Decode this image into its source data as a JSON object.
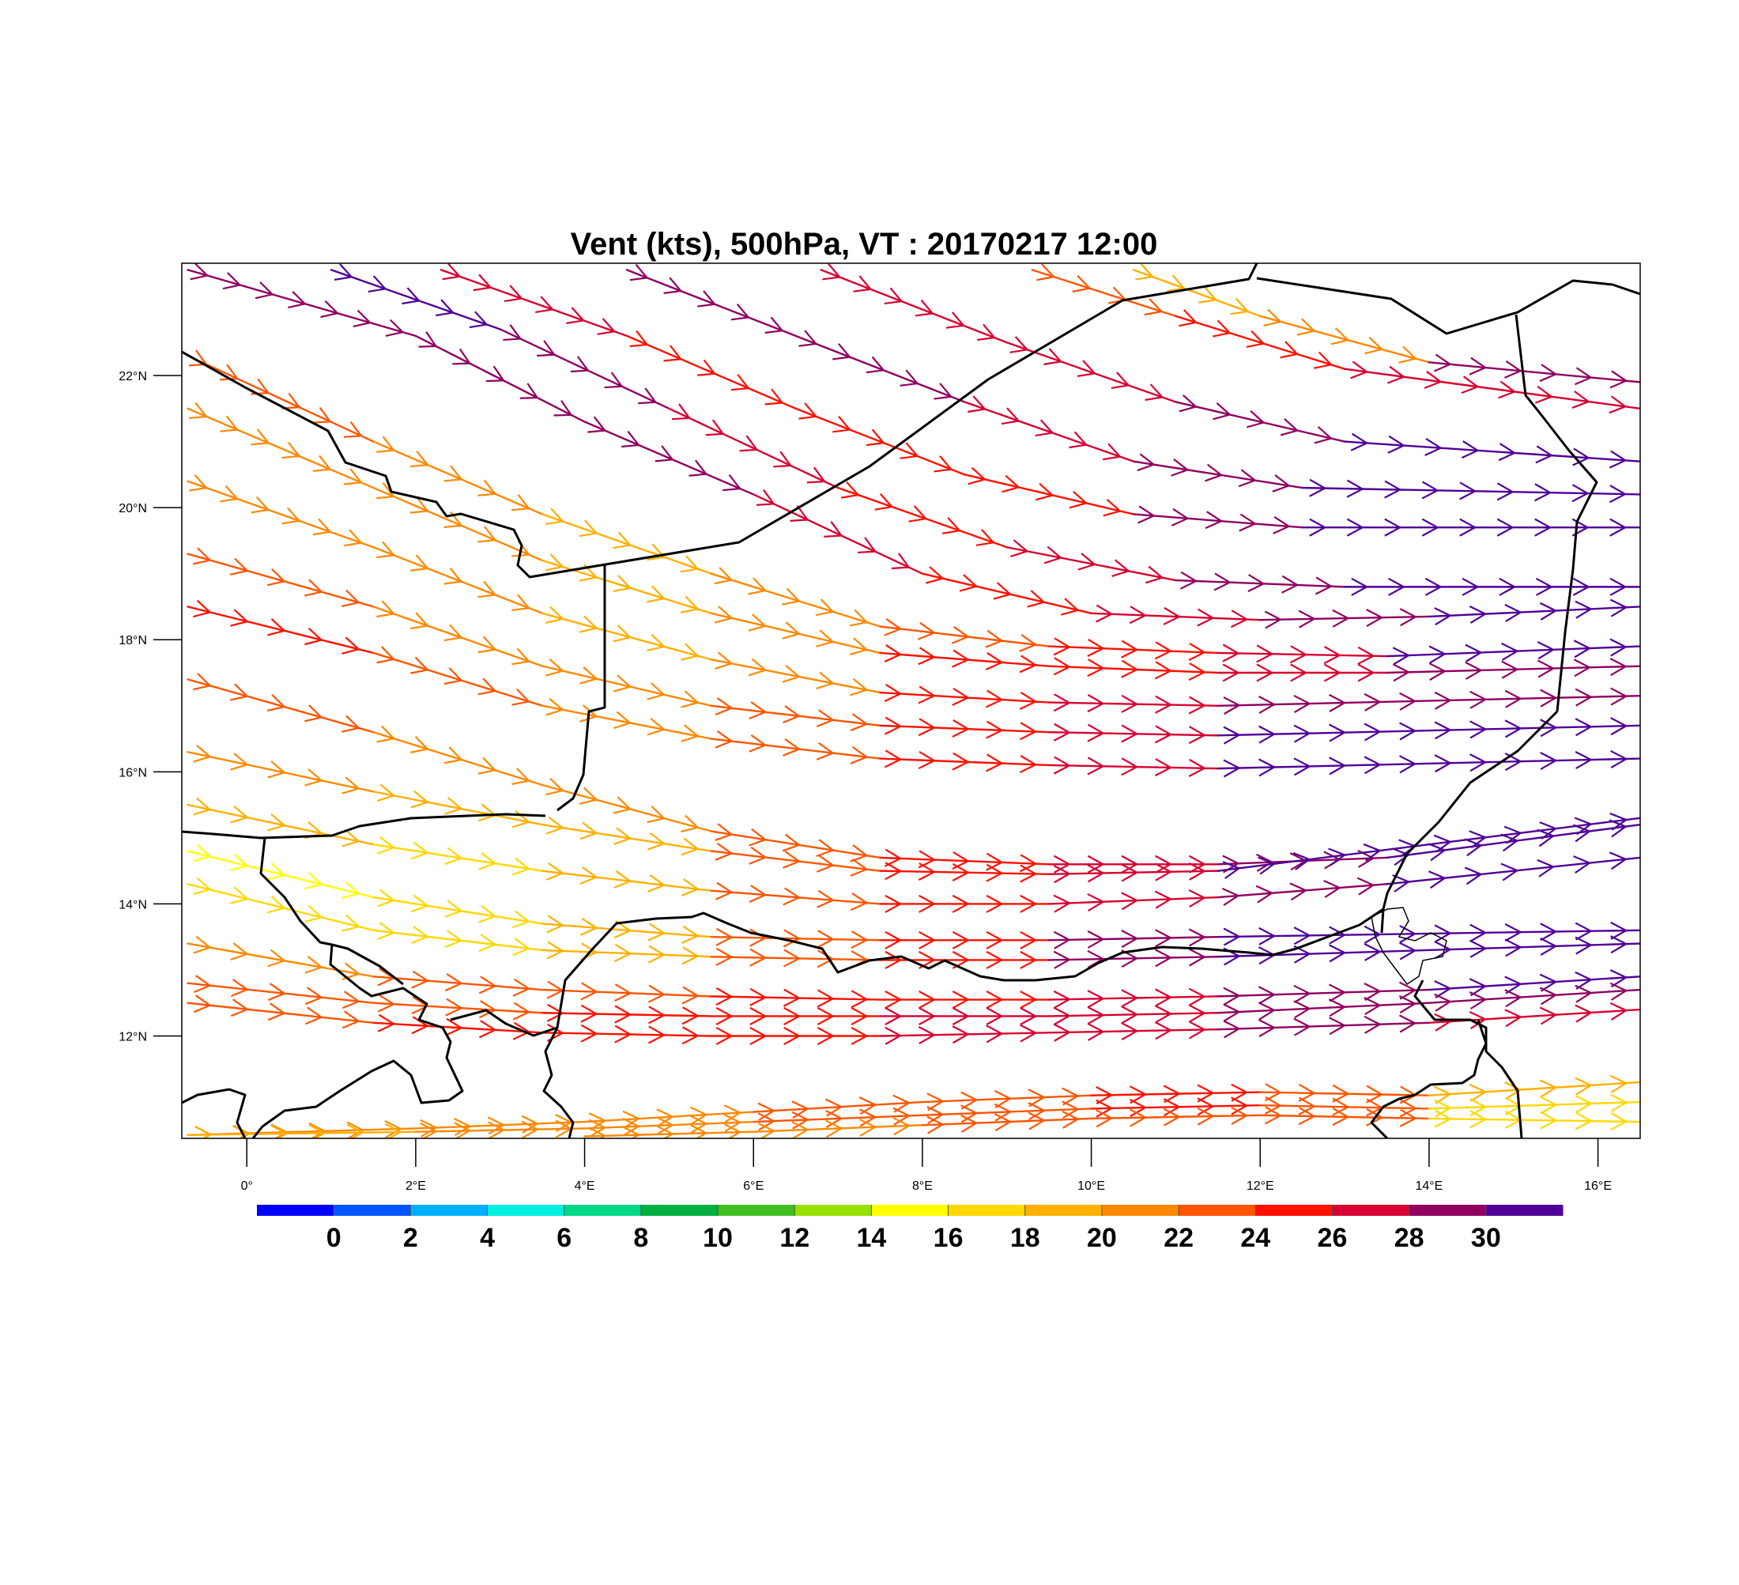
{
  "title": "Vent (kts), 500hPa, VT : 20170217  12:00",
  "map": {
    "lon_range": [
      -0.77,
      16.5
    ],
    "lat_range": [
      10.45,
      23.7
    ],
    "lat_ticks": [
      {
        "value": 22,
        "label": "22°N"
      },
      {
        "value": 20,
        "label": "20°N"
      },
      {
        "value": 18,
        "label": "18°N"
      },
      {
        "value": 16,
        "label": "16°N"
      },
      {
        "value": 14,
        "label": "14°N"
      },
      {
        "value": 12,
        "label": "12°N"
      }
    ],
    "lon_ticks": [
      {
        "value": 0,
        "label": "0°"
      },
      {
        "value": 2,
        "label": "2°E"
      },
      {
        "value": 4,
        "label": "4°E"
      },
      {
        "value": 6,
        "label": "6°E"
      },
      {
        "value": 8,
        "label": "8°E"
      },
      {
        "value": 10,
        "label": "10°E"
      },
      {
        "value": 12,
        "label": "12°E"
      },
      {
        "value": 14,
        "label": "14°E"
      },
      {
        "value": 16,
        "label": "16°E"
      }
    ]
  },
  "colorbar": {
    "colors": [
      "#0000ff",
      "#0055ff",
      "#00b0ff",
      "#00f0e0",
      "#00d888",
      "#00b040",
      "#40c020",
      "#98e000",
      "#ffff00",
      "#ffd800",
      "#ffb000",
      "#ff8800",
      "#ff5500",
      "#ff1000",
      "#d80030",
      "#900060",
      "#500098"
    ],
    "labels": [
      "0",
      "2",
      "4",
      "6",
      "8",
      "10",
      "12",
      "14",
      "16",
      "18",
      "20",
      "22",
      "24",
      "26",
      "28",
      "30"
    ]
  },
  "streamlines": [
    {
      "pts": [
        [
          -0.7,
          23.6
        ],
        [
          2,
          22.6
        ],
        [
          4,
          21.3
        ],
        [
          6,
          20.2
        ],
        [
          8,
          19.0
        ],
        [
          10,
          18.4
        ],
        [
          12,
          18.3
        ],
        [
          14,
          18.35
        ],
        [
          16.5,
          18.5
        ]
      ],
      "speeds": [
        28,
        29,
        28,
        26,
        24,
        26,
        28,
        30
      ]
    },
    {
      "pts": [
        [
          1,
          23.6
        ],
        [
          3,
          22.7
        ],
        [
          5,
          21.5
        ],
        [
          7,
          20.3
        ],
        [
          9,
          19.4
        ],
        [
          11,
          18.9
        ],
        [
          13,
          18.8
        ],
        [
          16.5,
          18.8
        ]
      ],
      "speeds": [
        30,
        29,
        27,
        25,
        26,
        28,
        31
      ]
    },
    {
      "pts": [
        [
          2.3,
          23.6
        ],
        [
          4.5,
          22.6
        ],
        [
          6.5,
          21.5
        ],
        [
          8.5,
          20.5
        ],
        [
          10.5,
          19.9
        ],
        [
          12.5,
          19.7
        ],
        [
          16.5,
          19.7
        ]
      ],
      "speeds": [
        26,
        25,
        24,
        25,
        28,
        31
      ]
    },
    {
      "pts": [
        [
          4.5,
          23.6
        ],
        [
          6.5,
          22.6
        ],
        [
          8.5,
          21.6
        ],
        [
          10.5,
          20.7
        ],
        [
          12.5,
          20.3
        ],
        [
          16.5,
          20.2
        ]
      ],
      "speeds": [
        29,
        28,
        27,
        29,
        31
      ]
    },
    {
      "pts": [
        [
          6.8,
          23.6
        ],
        [
          9,
          22.5
        ],
        [
          11,
          21.6
        ],
        [
          13,
          21.0
        ],
        [
          16.5,
          20.7
        ]
      ],
      "speeds": [
        27,
        26,
        28,
        31
      ]
    },
    {
      "pts": [
        [
          9.3,
          23.6
        ],
        [
          11,
          22.9
        ],
        [
          13,
          22.1
        ],
        [
          16.5,
          21.5
        ]
      ],
      "speeds": [
        22,
        24,
        27
      ]
    },
    {
      "pts": [
        [
          10.5,
          23.6
        ],
        [
          12,
          22.9
        ],
        [
          14,
          22.2
        ],
        [
          16.5,
          21.9
        ]
      ],
      "speeds": [
        18,
        21,
        28
      ]
    },
    {
      "pts": [
        [
          -0.7,
          22.3
        ],
        [
          1.5,
          21.0
        ],
        [
          3.5,
          19.9
        ],
        [
          5.5,
          19.0
        ],
        [
          7.5,
          18.2
        ],
        [
          9.5,
          17.9
        ],
        [
          11.5,
          17.8
        ],
        [
          13.5,
          17.75
        ],
        [
          16.5,
          17.9
        ]
      ],
      "speeds": [
        22,
        21,
        19,
        20,
        23,
        25,
        27,
        30
      ]
    },
    {
      "pts": [
        [
          -0.7,
          21.5
        ],
        [
          1.5,
          20.3
        ],
        [
          3.5,
          19.2
        ],
        [
          5.5,
          18.4
        ],
        [
          7.5,
          17.8
        ],
        [
          9.5,
          17.6
        ],
        [
          11.5,
          17.5
        ],
        [
          13.5,
          17.5
        ],
        [
          16.5,
          17.6
        ]
      ],
      "speeds": [
        21,
        20,
        19,
        21,
        24,
        25,
        27,
        29
      ]
    },
    {
      "pts": [
        [
          -0.7,
          20.4
        ],
        [
          1.5,
          19.4
        ],
        [
          3.5,
          18.4
        ],
        [
          5.5,
          17.7
        ],
        [
          7.5,
          17.2
        ],
        [
          9.5,
          17.05
        ],
        [
          11.5,
          17.0
        ],
        [
          16.5,
          17.15
        ]
      ],
      "speeds": [
        21,
        20,
        19,
        21,
        24,
        26,
        29
      ]
    },
    {
      "pts": [
        [
          -0.7,
          19.3
        ],
        [
          1.5,
          18.5
        ],
        [
          3.5,
          17.6
        ],
        [
          5.5,
          17.0
        ],
        [
          7.5,
          16.7
        ],
        [
          9.5,
          16.6
        ],
        [
          11.5,
          16.55
        ],
        [
          16.5,
          16.7
        ]
      ],
      "speeds": [
        22,
        21,
        20,
        22,
        24,
        27,
        30
      ]
    },
    {
      "pts": [
        [
          -0.7,
          18.5
        ],
        [
          1.5,
          17.8
        ],
        [
          3.5,
          17.0
        ],
        [
          5.5,
          16.5
        ],
        [
          7.5,
          16.2
        ],
        [
          9.5,
          16.1
        ],
        [
          11.5,
          16.05
        ],
        [
          16.5,
          16.2
        ]
      ],
      "speeds": [
        24,
        23,
        21,
        22,
        24,
        27,
        31
      ]
    },
    {
      "pts": [
        [
          -0.7,
          17.4
        ],
        [
          1.5,
          16.6
        ],
        [
          3.5,
          15.8
        ],
        [
          5.5,
          15.1
        ],
        [
          7.5,
          14.7
        ],
        [
          9.5,
          14.6
        ],
        [
          11.5,
          14.6
        ],
        [
          13.5,
          14.7
        ],
        [
          16.5,
          15.2
        ]
      ],
      "speeds": [
        22,
        21,
        20,
        22,
        24,
        26,
        28,
        31
      ]
    },
    {
      "pts": [
        [
          -0.7,
          16.3
        ],
        [
          1.5,
          15.7
        ],
        [
          3.5,
          15.2
        ],
        [
          5.5,
          14.8
        ],
        [
          7.5,
          14.5
        ],
        [
          9.5,
          14.45
        ],
        [
          11.5,
          14.5
        ],
        [
          16.5,
          15.3
        ]
      ],
      "speeds": [
        20,
        19,
        19,
        22,
        24,
        27,
        31
      ]
    },
    {
      "pts": [
        [
          -0.7,
          15.5
        ],
        [
          1.5,
          14.9
        ],
        [
          3.5,
          14.5
        ],
        [
          5.5,
          14.2
        ],
        [
          7.5,
          14.0
        ],
        [
          9.5,
          14.0
        ],
        [
          11.5,
          14.1
        ],
        [
          13.5,
          14.3
        ],
        [
          16.5,
          14.7
        ]
      ],
      "speeds": [
        18,
        17,
        18,
        22,
        24,
        26,
        29,
        31
      ]
    },
    {
      "pts": [
        [
          -0.7,
          14.8
        ],
        [
          1.5,
          14.1
        ],
        [
          3.5,
          13.7
        ],
        [
          5.5,
          13.5
        ],
        [
          7.5,
          13.45
        ],
        [
          9.5,
          13.45
        ],
        [
          11.5,
          13.5
        ],
        [
          16.5,
          13.6
        ]
      ],
      "speeds": [
        15,
        16,
        18,
        22,
        25,
        28,
        30
      ]
    },
    {
      "pts": [
        [
          -0.7,
          14.3
        ],
        [
          1.5,
          13.6
        ],
        [
          3.5,
          13.3
        ],
        [
          5.5,
          13.2
        ],
        [
          7.5,
          13.15
        ],
        [
          9.5,
          13.15
        ],
        [
          11.5,
          13.2
        ],
        [
          16.5,
          13.4
        ]
      ],
      "speeds": [
        16,
        17,
        19,
        23,
        25,
        28,
        30
      ]
    },
    {
      "pts": [
        [
          -0.7,
          13.4
        ],
        [
          1.5,
          12.9
        ],
        [
          3.5,
          12.7
        ],
        [
          5.5,
          12.6
        ],
        [
          7.5,
          12.55
        ],
        [
          9.5,
          12.55
        ],
        [
          11.5,
          12.6
        ],
        [
          14,
          12.7
        ],
        [
          16.5,
          12.9
        ]
      ],
      "speeds": [
        21,
        22,
        23,
        24,
        25,
        27,
        29,
        30
      ]
    },
    {
      "pts": [
        [
          -0.7,
          12.8
        ],
        [
          1.5,
          12.5
        ],
        [
          3.5,
          12.35
        ],
        [
          5.5,
          12.3
        ],
        [
          7.5,
          12.3
        ],
        [
          9.5,
          12.3
        ],
        [
          11.5,
          12.35
        ],
        [
          14,
          12.5
        ],
        [
          16.5,
          12.7
        ]
      ],
      "speeds": [
        22,
        23,
        24,
        25,
        26,
        27,
        29,
        28
      ]
    },
    {
      "pts": [
        [
          -0.7,
          12.5
        ],
        [
          1.5,
          12.2
        ],
        [
          3.5,
          12.05
        ],
        [
          5.5,
          12.0
        ],
        [
          7.5,
          12.0
        ],
        [
          9.5,
          12.05
        ],
        [
          11.5,
          12.1
        ],
        [
          14,
          12.2
        ],
        [
          16.5,
          12.4
        ]
      ],
      "speeds": [
        23,
        24,
        25,
        25,
        26,
        27,
        28,
        27
      ]
    },
    {
      "pts": [
        [
          -0.7,
          10.5
        ],
        [
          2,
          10.6
        ],
        [
          4,
          10.7
        ],
        [
          6,
          10.85
        ],
        [
          8,
          11.0
        ],
        [
          10,
          11.1
        ],
        [
          12,
          11.15
        ],
        [
          14,
          11.1
        ],
        [
          16.5,
          11.3
        ]
      ],
      "speeds": [
        20,
        21,
        21,
        22,
        23,
        24,
        23,
        18
      ]
    },
    {
      "pts": [
        [
          -0.7,
          10.5
        ],
        [
          2,
          10.55
        ],
        [
          4,
          10.6
        ],
        [
          6,
          10.7
        ],
        [
          8,
          10.8
        ],
        [
          10,
          10.9
        ],
        [
          12,
          10.95
        ],
        [
          14,
          10.9
        ],
        [
          16.5,
          11.0
        ]
      ],
      "speeds": [
        19,
        20,
        21,
        22,
        23,
        24,
        22,
        17
      ]
    },
    {
      "pts": [
        [
          4,
          10.48
        ],
        [
          6,
          10.55
        ],
        [
          8,
          10.65
        ],
        [
          10,
          10.75
        ],
        [
          12,
          10.8
        ],
        [
          14,
          10.75
        ],
        [
          16.5,
          10.7
        ]
      ],
      "speeds": [
        20,
        21,
        22,
        23,
        22,
        16
      ]
    }
  ]
}
